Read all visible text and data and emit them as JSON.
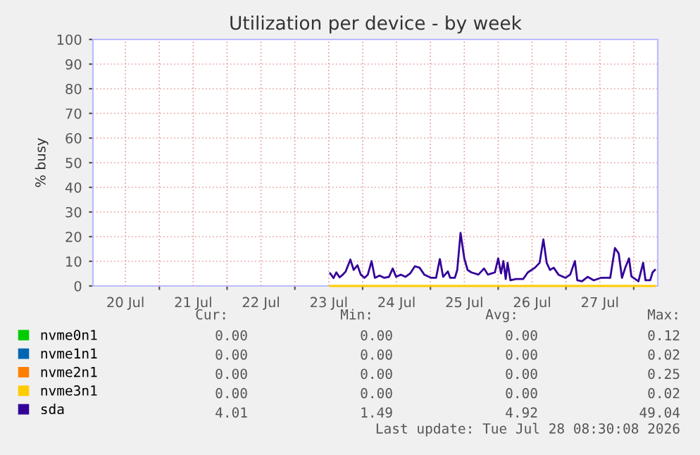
{
  "chart_data": {
    "type": "line",
    "title": "Utilization per device - by week",
    "ylabel": "% busy",
    "xlim": [
      "2026-07-20T00:30",
      "2026-07-28T08:30"
    ],
    "xticks": [
      {
        "value": "2026-07-20T12:00",
        "label": "20 Jul"
      },
      {
        "value": "2026-07-21T12:00",
        "label": "21 Jul"
      },
      {
        "value": "2026-07-22T12:00",
        "label": "22 Jul"
      },
      {
        "value": "2026-07-23T12:00",
        "label": "23 Jul"
      },
      {
        "value": "2026-07-24T12:00",
        "label": "24 Jul"
      },
      {
        "value": "2026-07-25T12:00",
        "label": "25 Jul"
      },
      {
        "value": "2026-07-26T12:00",
        "label": "26 Jul"
      },
      {
        "value": "2026-07-27T12:00",
        "label": "27 Jul"
      },
      {
        "value": "2026-07-21",
        "label": null
      },
      {
        "value": "2026-07-22",
        "label": null
      },
      {
        "value": "2026-07-23",
        "label": null
      },
      {
        "value": "2026-07-24",
        "label": null
      },
      {
        "value": "2026-07-25",
        "label": null
      },
      {
        "value": "2026-07-26",
        "label": null
      },
      {
        "value": "2026-07-27",
        "label": null
      },
      {
        "value": "2026-07-28",
        "label": null
      }
    ],
    "ylim": [
      0,
      100
    ],
    "yticks": [
      0,
      10,
      20,
      30,
      40,
      50,
      60,
      70,
      80,
      90,
      100
    ],
    "grid": true,
    "legend": "bottom",
    "series": [
      {
        "name": "nvme0n1",
        "color": "#00cc00"
      },
      {
        "name": "nvme1n1",
        "color": "#0066b3"
      },
      {
        "name": "nvme2n1",
        "color": "#ff8000"
      },
      {
        "name": "nvme3n1",
        "color": "#ffcc00",
        "x": [
          "2026-07-23T12:30",
          "2026-07-28T07:30"
        ],
        "values": [
          0,
          0
        ]
      },
      {
        "name": "sda",
        "color": "#330099",
        "x": [
          "2026-07-23T12:30",
          "2026-07-23T13:40",
          "2026-07-23T14:40",
          "2026-07-23T15:50",
          "2026-07-23T17:00",
          "2026-07-23T18:00",
          "2026-07-23T19:40",
          "2026-07-23T20:50",
          "2026-07-23T22:10",
          "2026-07-23T23:20",
          "2026-07-24T00:40",
          "2026-07-24T01:50",
          "2026-07-24T03:10",
          "2026-07-24T04:20",
          "2026-07-24T06:00",
          "2026-07-24T07:40",
          "2026-07-24T09:20",
          "2026-07-24T10:40",
          "2026-07-24T11:50",
          "2026-07-24T13:30",
          "2026-07-24T15:10",
          "2026-07-24T16:50",
          "2026-07-24T18:30",
          "2026-07-24T20:10",
          "2026-07-24T21:50",
          "2026-07-25T00:20",
          "2026-07-25T02:00",
          "2026-07-25T03:20",
          "2026-07-25T04:30",
          "2026-07-25T06:10",
          "2026-07-25T07:00",
          "2026-07-25T08:40",
          "2026-07-25T09:30",
          "2026-07-25T10:40",
          "2026-07-25T12:00",
          "2026-07-25T13:10",
          "2026-07-25T14:30",
          "2026-07-25T17:00",
          "2026-07-25T19:00",
          "2026-07-25T20:20",
          "2026-07-25T22:50",
          "2026-07-26T00:00",
          "2026-07-26T01:00",
          "2026-07-26T01:50",
          "2026-07-26T02:40",
          "2026-07-26T03:20",
          "2026-07-26T04:20",
          "2026-07-26T06:20",
          "2026-07-26T08:50",
          "2026-07-26T10:30",
          "2026-07-26T13:00",
          "2026-07-26T14:40",
          "2026-07-26T16:00",
          "2026-07-26T17:10",
          "2026-07-26T18:20",
          "2026-07-26T19:40",
          "2026-07-26T21:20",
          "2026-07-26T23:50",
          "2026-07-27T01:30",
          "2026-07-27T03:10",
          "2026-07-27T04:00",
          "2026-07-27T05:40",
          "2026-07-27T07:40",
          "2026-07-27T09:50",
          "2026-07-27T12:20",
          "2026-07-27T15:40",
          "2026-07-27T17:20",
          "2026-07-27T18:40",
          "2026-07-27T19:50",
          "2026-07-27T21:00",
          "2026-07-27T22:20",
          "2026-07-27T23:10",
          "2026-07-28T01:40",
          "2026-07-28T03:20",
          "2026-07-28T04:10",
          "2026-07-28T05:50",
          "2026-07-28T06:40",
          "2026-07-28T07:30"
        ],
        "values": [
          5.1,
          3.2,
          5.5,
          3.5,
          4.6,
          5.9,
          10.7,
          6.5,
          8.4,
          4.6,
          3.3,
          4.6,
          10.1,
          3.3,
          4.2,
          3.3,
          3.7,
          7.1,
          3.7,
          4.6,
          3.7,
          5.1,
          8.0,
          7.4,
          4.6,
          3.3,
          3.3,
          10.9,
          3.7,
          5.9,
          3.3,
          3.3,
          6.5,
          21.5,
          11.2,
          6.5,
          5.5,
          4.6,
          7.1,
          4.6,
          5.5,
          11.2,
          5.1,
          10.1,
          2.8,
          9.4,
          2.3,
          2.8,
          2.8,
          5.5,
          7.4,
          9.4,
          18.9,
          9.4,
          6.5,
          7.4,
          4.6,
          3.3,
          4.6,
          10.1,
          2.3,
          1.9,
          3.7,
          2.3,
          3.3,
          3.3,
          15.4,
          13.2,
          3.3,
          7.4,
          11.2,
          3.9,
          1.9,
          9.4,
          2.3,
          2.3,
          5.5,
          6.5
        ]
      }
    ],
    "annotations": [
      "Cur:",
      "Min:",
      "Avg:",
      "Max:",
      "0.00",
      "0.00",
      "0.00",
      "0.12",
      "0.00",
      "0.00",
      "0.00",
      "0.02",
      "0.00",
      "0.00",
      "0.00",
      "0.25",
      "0.00",
      "0.00",
      "0.00",
      "0.02",
      "4.01",
      "1.49",
      "4.92",
      "49.04",
      "Last update: Tue Jul 28 08:30:08 2026"
    ]
  }
}
